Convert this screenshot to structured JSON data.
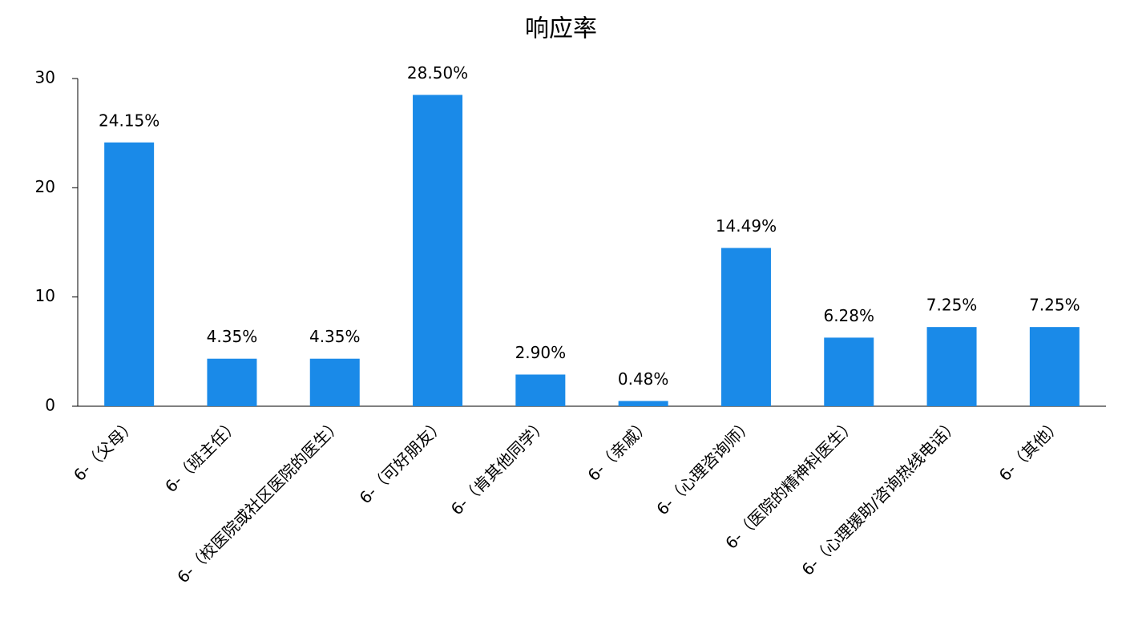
{
  "chart_data": {
    "type": "bar",
    "title": "响应率",
    "categories": [
      "6-（父母）",
      "6-（班主任）",
      "6-（校医院或社区医院的医生）",
      "6-（可好朋友）",
      "6-（肯其他同学）",
      "6-（亲戚）",
      "6-（心理咨询师）",
      "6-（医院的精神科医生）",
      "6-（心理援助/咨询热线电话）",
      "6-（其他）"
    ],
    "values": [
      24.15,
      4.35,
      4.35,
      28.5,
      2.9,
      0.48,
      14.49,
      6.28,
      7.25,
      7.25
    ],
    "value_labels": [
      "24.15%",
      "4.35%",
      "4.35%",
      "28.50%",
      "2.90%",
      "0.48%",
      "14.49%",
      "6.28%",
      "7.25%",
      "7.25%"
    ],
    "color": "#1a8ae8",
    "ylim": [
      0,
      30
    ],
    "yticks": [
      0,
      10,
      20,
      30
    ],
    "grid": false
  }
}
